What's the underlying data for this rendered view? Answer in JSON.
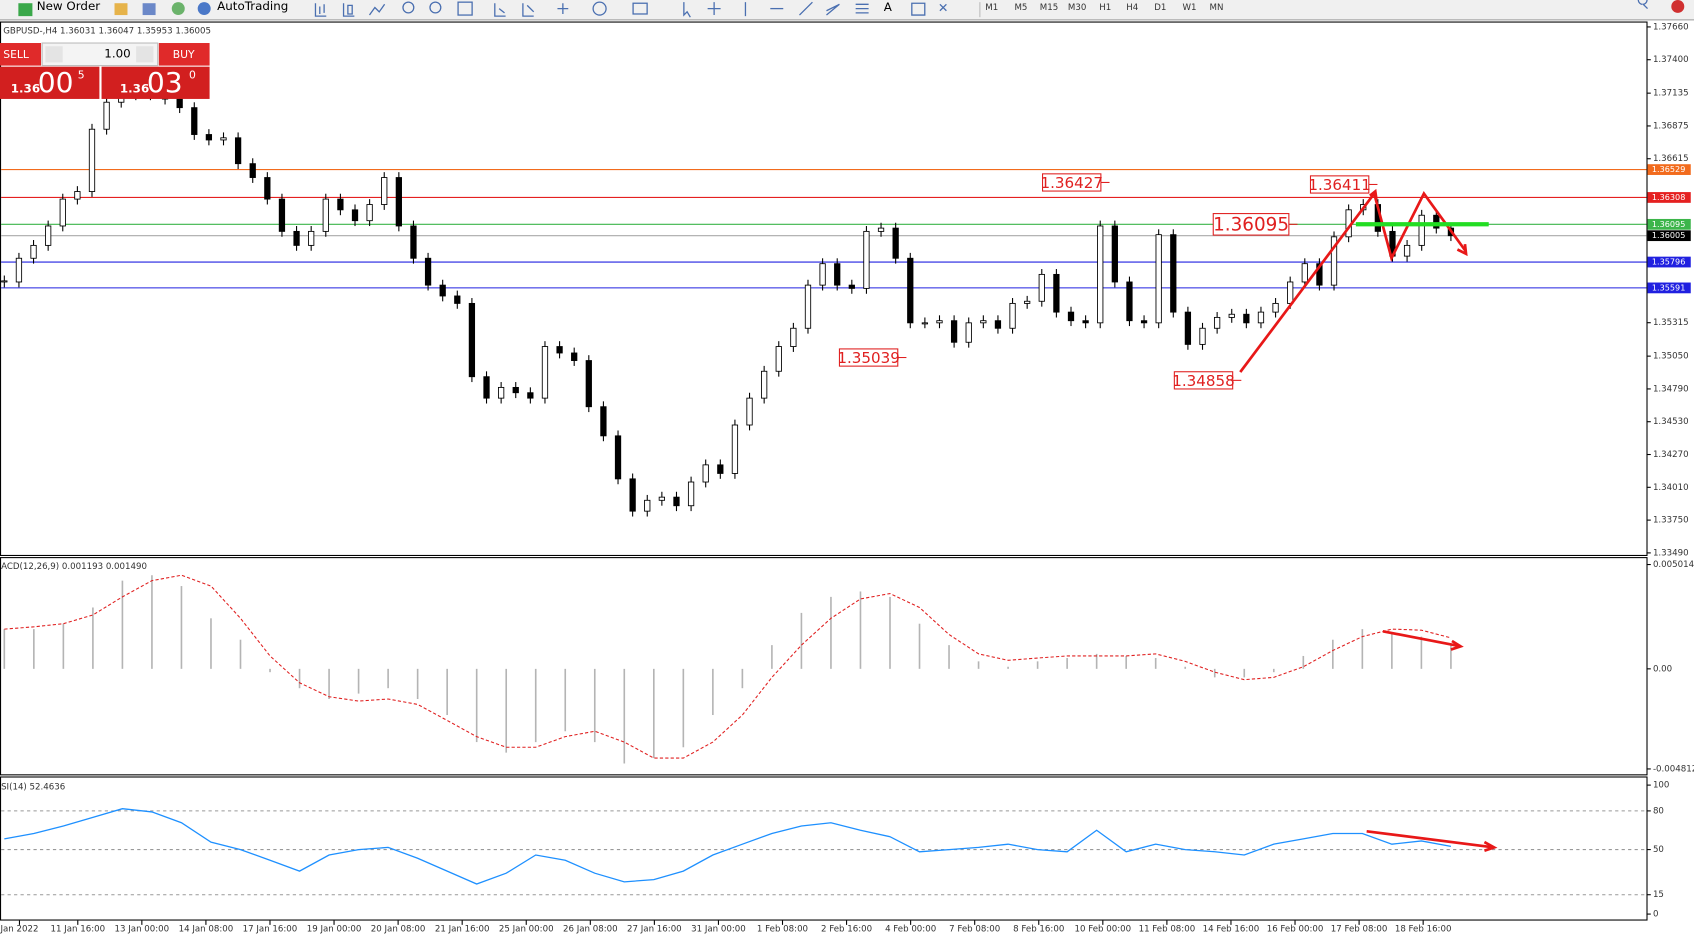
{
  "toolbar": {
    "new_order": "New Order",
    "auto_trading": "AutoTrading",
    "timeframes": [
      "M1",
      "M5",
      "M15",
      "M30",
      "H1",
      "H4",
      "D1",
      "W1",
      "MN"
    ]
  },
  "one_click": {
    "sell": "SELL",
    "lot": "1.00",
    "buy": "BUY",
    "sell_price": {
      "big": "1.36",
      "pips": "00",
      "fraction": "5"
    },
    "buy_price": {
      "big": "1.36",
      "pips": "03",
      "fraction": "0"
    }
  },
  "chart_data": [
    {
      "type": "candlestick",
      "title": "GBPUSD-,H4  1.36031 1.36047 1.35953 1.36005",
      "bull_color": "#ffffff",
      "bear_color": "#000000",
      "closes": [
        1.35638,
        1.35826,
        1.35928,
        1.36082,
        1.36295,
        1.36355,
        1.36849,
        1.37063,
        1.37122,
        1.37148,
        1.37122,
        1.37088,
        1.3702,
        1.36807,
        1.36764,
        1.36781,
        1.36576,
        1.36466,
        1.36295,
        1.36039,
        1.35928,
        1.36039,
        1.36295,
        1.3621,
        1.36124,
        1.36252,
        1.36466,
        1.36082,
        1.35826,
        1.35613,
        1.35527,
        1.35468,
        1.34887,
        1.34717,
        1.34802,
        1.3476,
        1.34717,
        1.35126,
        1.35075,
        1.35015,
        1.34649,
        1.34418,
        1.34077,
        1.33821,
        1.33907,
        1.33932,
        1.33864,
        1.34052,
        1.34188,
        1.3412,
        1.34504,
        1.34717,
        1.3493,
        1.35126,
        1.35271,
        1.35613,
        1.35783,
        1.35613,
        1.35587,
        1.36039,
        1.36065,
        1.35826,
        1.35314,
        1.35314,
        1.35331,
        1.3516,
        1.35314,
        1.35331,
        1.35271,
        1.35468,
        1.35485,
        1.35698,
        1.35399,
        1.35331,
        1.35314,
        1.36082,
        1.35638,
        1.35331,
        1.35314,
        1.36013,
        1.35399,
        1.35143,
        1.35271,
        1.35357,
        1.35382,
        1.35314,
        1.35399,
        1.35468,
        1.35638,
        1.35783,
        1.35613,
        1.35996,
        1.3621,
        1.36252,
        1.36039,
        1.35843,
        1.35928,
        1.36167,
        1.36065,
        1.36005
      ],
      "ylim": [
        1.37703,
        1.33474
      ],
      "yticks": [
        {
          "value": 1.3766,
          "label": "1.37660"
        },
        {
          "value": 1.374,
          "label": "1.37400"
        },
        1.37135,
        1.36875,
        1.36615,
        1.35315,
        {
          "value": 1.3505,
          "label": "1.35050"
        },
        {
          "value": 1.3479,
          "label": "1.34790"
        },
        {
          "value": 1.3453,
          "label": "1.34530"
        },
        {
          "value": 1.3427,
          "label": "1.34270"
        },
        {
          "value": 1.3401,
          "label": "1.34010"
        },
        {
          "value": 1.3375,
          "label": "1.33750"
        },
        {
          "value": 1.3349,
          "label": "1.33490"
        }
      ],
      "price_lines": [
        {
          "value": 1.36529,
          "color": "#f26b1d"
        },
        {
          "value": 1.36308,
          "color": "#e52020"
        },
        {
          "value": 1.36095,
          "color": "#3cb54a"
        },
        {
          "value": 1.36005,
          "color": "#000000"
        },
        {
          "value": 1.35796,
          "color": "#2020e0"
        },
        {
          "value": 1.35591,
          "color": "#2020e0"
        }
      ],
      "annotations": [
        1.36427,
        1.35039,
        1.34858,
        1.36411,
        1.36095
      ],
      "x_labels": [
        "Jan 2022",
        "11 Jan 16:00",
        "13 Jan 00:00",
        "14 Jan 08:00",
        "17 Jan 16:00",
        "19 Jan 00:00",
        "20 Jan 08:00",
        "21 Jan 16:00",
        "25 Jan 00:00",
        "26 Jan 08:00",
        "27 Jan 16:00",
        "31 Jan 00:00",
        "1 Feb 08:00",
        "2 Feb 16:00",
        "4 Feb 00:00",
        "7 Feb 08:00",
        "8 Feb 16:00",
        "10 Feb 00:00",
        "11 Feb 08:00",
        "14 Feb 16:00",
        "16 Feb 00:00",
        "17 Feb 08:00",
        "18 Feb 16:00"
      ]
    },
    {
      "type": "macd",
      "title": "ACD(12,26,9) 0.001193 0.001490",
      "histogram": {
        "color": "#b4b4b4",
        "values": [
          0.00191,
          0.00191,
          0.00217,
          0.00295,
          0.00424,
          0.0045,
          0.00398,
          0.00243,
          0.0014,
          -0.00016,
          -0.00093,
          -0.00145,
          -0.00119,
          -0.00093,
          -0.00145,
          -0.00222,
          -0.00352,
          -0.00403,
          -0.00352,
          -0.003,
          -0.00352,
          -0.00455,
          -0.00429,
          -0.00377,
          -0.00222,
          -0.00093,
          0.00114,
          0.00269,
          0.00346,
          0.00372,
          0.00346,
          0.00217,
          0.00114,
          0.00036,
          0.0001,
          0.00036,
          0.00052,
          0.00072,
          0.00062,
          0.00052,
          0.0001,
          -0.00041,
          -0.00041,
          -0.00016,
          0.00062,
          0.0014,
          0.00191,
          0.00176,
          0.00155,
          0.00119
        ]
      },
      "signal": {
        "color": "#e02020",
        "values": [
          0.00191,
          0.00202,
          0.00217,
          0.00259,
          0.00346,
          0.00424,
          0.0045,
          0.00398,
          0.00243,
          0.00062,
          -0.00067,
          -0.00134,
          -0.00155,
          -0.00145,
          -0.00171,
          -0.00248,
          -0.00326,
          -0.00377,
          -0.00377,
          -0.00326,
          -0.003,
          -0.00352,
          -0.00429,
          -0.00429,
          -0.00352,
          -0.00222,
          -0.00041,
          0.00114,
          0.00243,
          0.00336,
          0.00362,
          0.00295,
          0.00165,
          0.00072,
          0.00041,
          0.00052,
          0.00062,
          0.00062,
          0.00062,
          0.00072,
          0.00036,
          -0.00016,
          -0.00052,
          -0.00041,
          0.0001,
          0.00088,
          0.00155,
          0.00191,
          0.00186,
          0.00149
        ]
      },
      "ylim": [
        0.00527,
        -0.00507
      ],
      "yticks": [
        0.005014,
        {
          "value": 0,
          "label": "0.00"
        },
        -0.004812
      ]
    },
    {
      "type": "rsi",
      "title": "SI(14) 52.4636",
      "color": "#1e90ff",
      "values": [
        58.3,
        62.5,
        68.3,
        75,
        81.7,
        79.2,
        70.8,
        55.8,
        50,
        41.7,
        33.3,
        45.8,
        50,
        51.7,
        43.3,
        33.3,
        23.3,
        31.7,
        45.8,
        41.7,
        31.7,
        25,
        26.7,
        33.3,
        45.8,
        54.2,
        62.5,
        68.3,
        70.8,
        65,
        60,
        48.3,
        50,
        51.7,
        54.2,
        50,
        48.3,
        65,
        48.3,
        54.2,
        50,
        48.3,
        45.8,
        54.2,
        58.3,
        62.5,
        62.5,
        54.2,
        56.7,
        52.5
      ],
      "ylim": [
        104.2,
        -4.2
      ],
      "yticks": [
        100,
        80,
        50,
        15,
        0
      ],
      "levels": [
        80,
        50,
        15
      ]
    }
  ]
}
